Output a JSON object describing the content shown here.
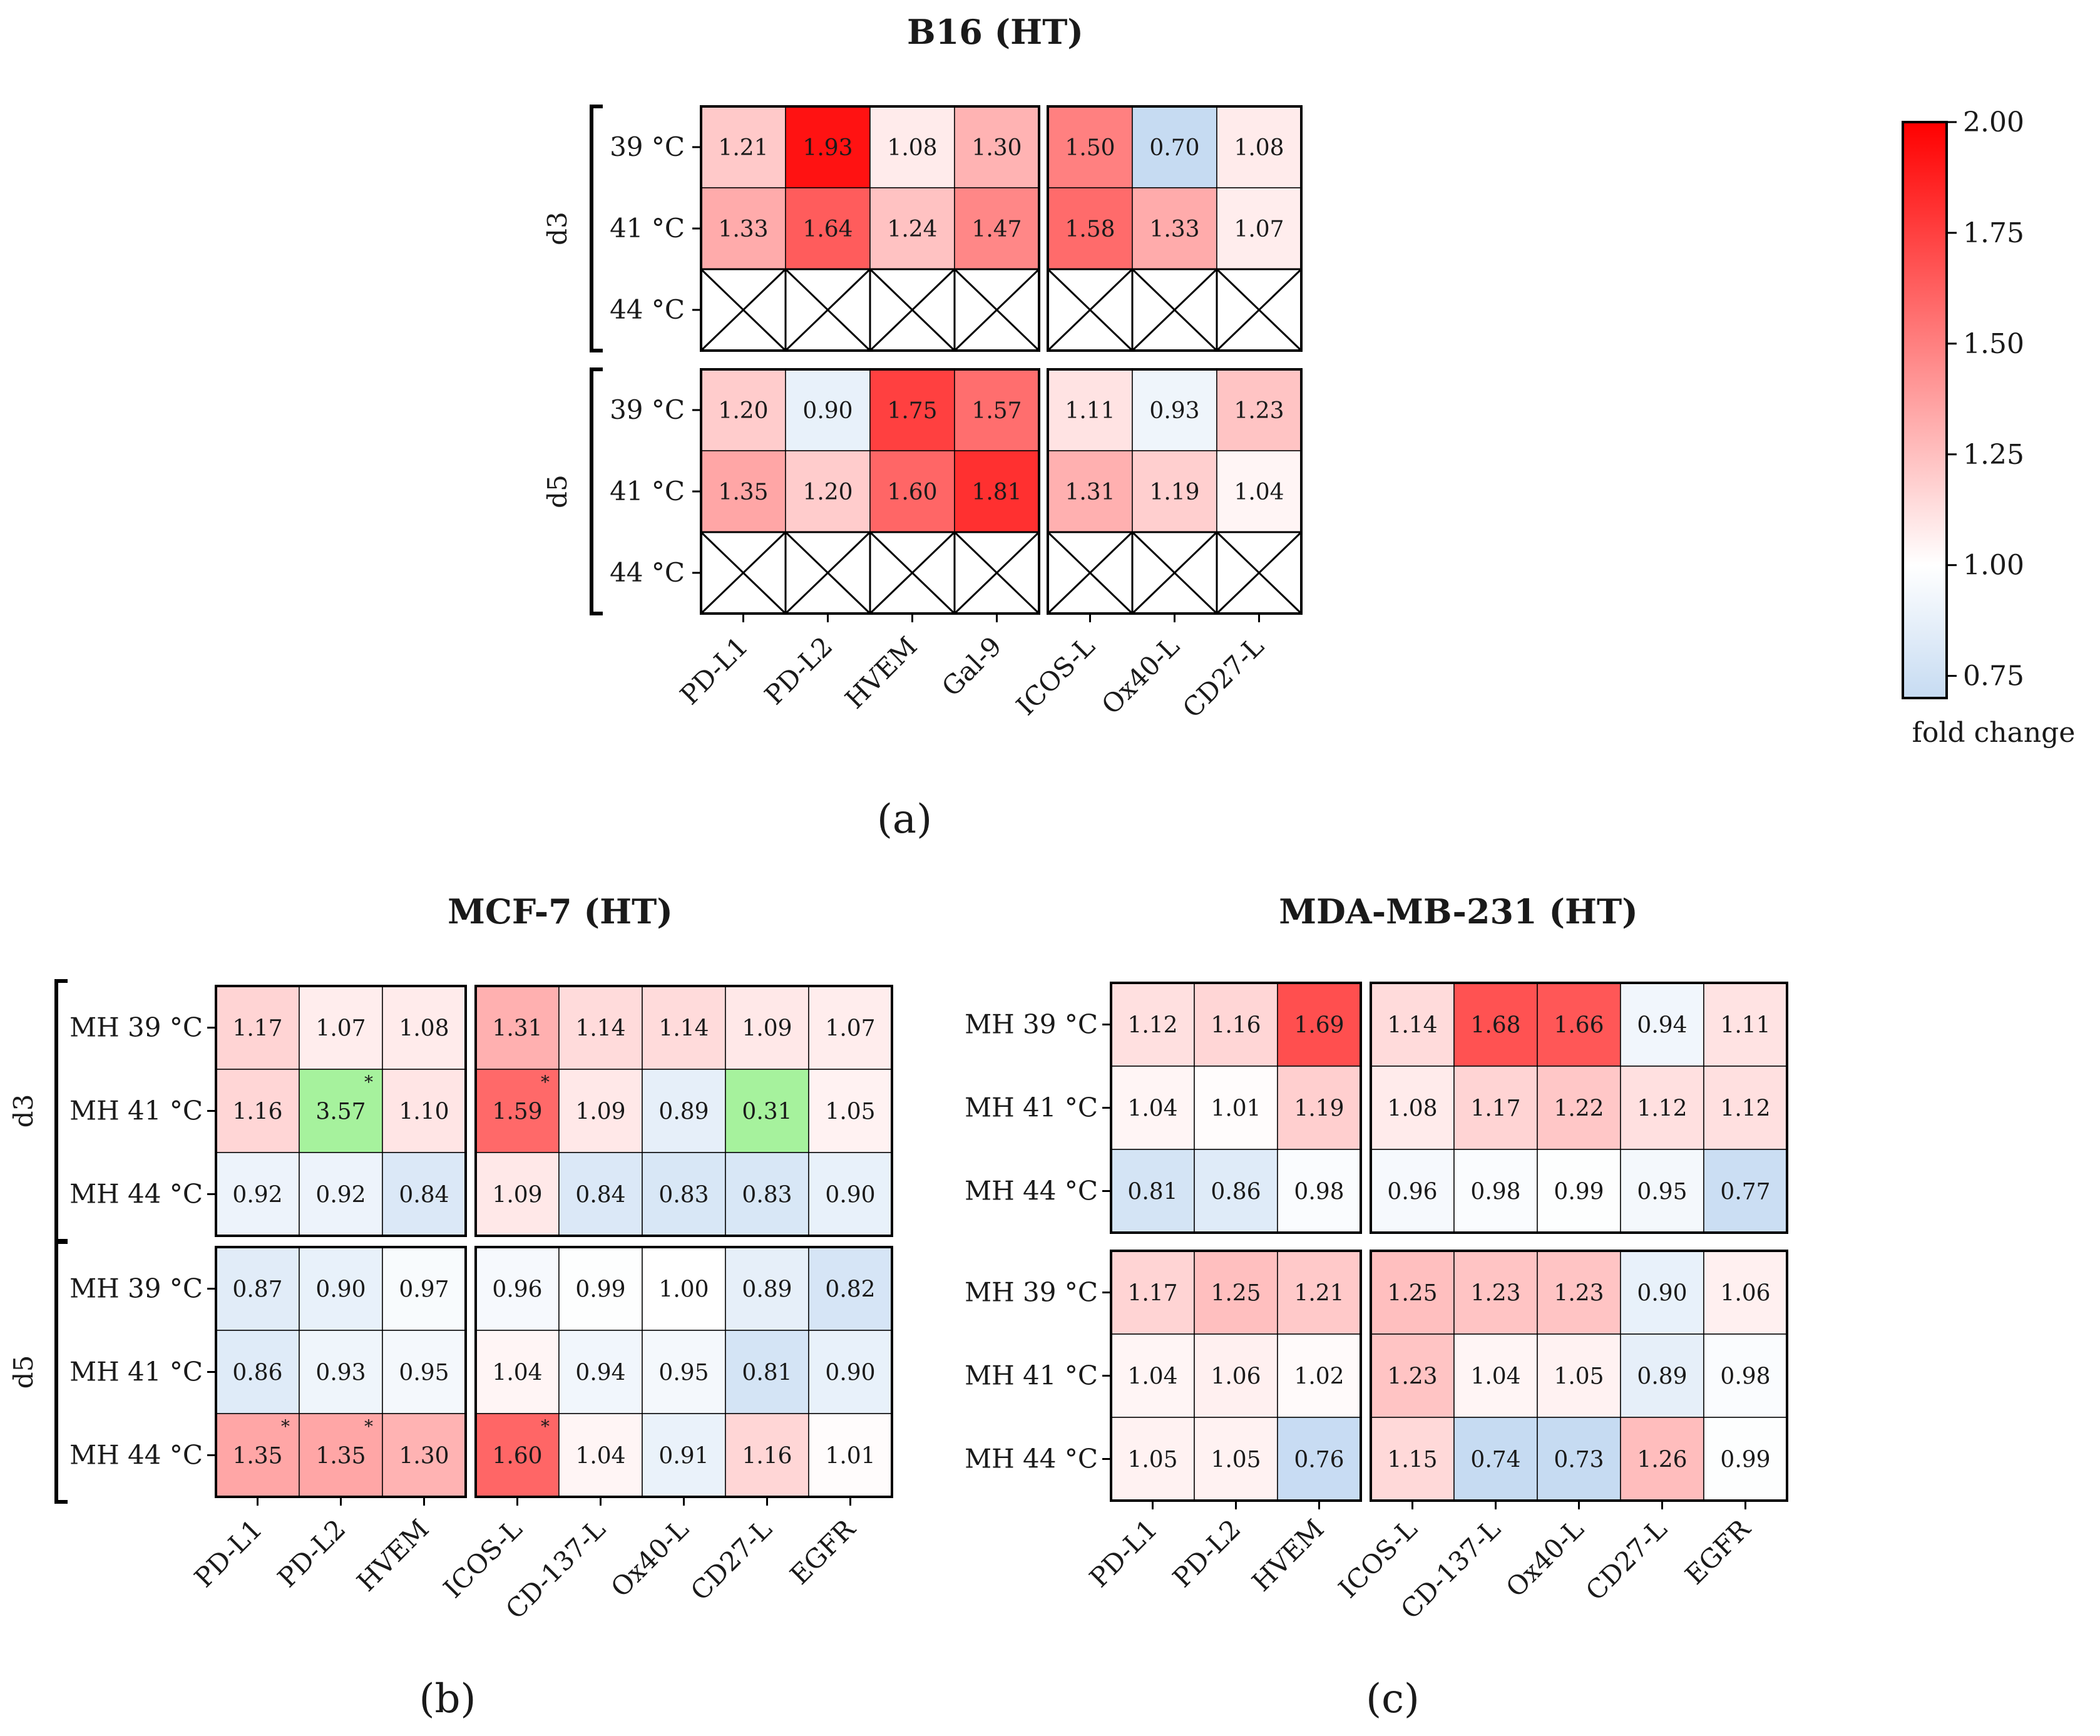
{
  "chart_data": [
    {
      "id": "a",
      "type": "heatmap",
      "title": "B16  (HT)",
      "panel_label": "(a)",
      "groups": [
        "d3",
        "d5"
      ],
      "rows": [
        "39 °C",
        "41 °C",
        "44 °C"
      ],
      "col_blocks": [
        [
          "PD-L1",
          "PD-L2",
          "HVEM",
          "Gal-9"
        ],
        [
          "ICOS-L",
          "Ox40-L",
          "CD27-L"
        ]
      ],
      "values": [
        [
          [
            1.21,
            1.93,
            1.08,
            1.3
          ],
          [
            1.5,
            0.7,
            1.08
          ]
        ],
        [
          [
            1.33,
            1.64,
            1.24,
            1.47
          ],
          [
            1.58,
            1.33,
            1.07
          ]
        ],
        [
          null,
          null
        ],
        [
          [
            1.2,
            0.9,
            1.75,
            1.57
          ],
          [
            1.11,
            0.93,
            1.23
          ]
        ],
        [
          [
            1.35,
            1.2,
            1.6,
            1.81
          ],
          [
            1.31,
            1.19,
            1.04
          ]
        ],
        [
          null,
          null
        ]
      ],
      "value_labels": [
        [
          [
            "1.21",
            "1.93",
            "1.08",
            "1.30"
          ],
          [
            "1.50",
            "0.70",
            "1.08"
          ]
        ],
        [
          [
            "1.33",
            "1.64",
            "1.24",
            "1.47"
          ],
          [
            "1.58",
            "1.33",
            "1.07"
          ]
        ],
        [
          null,
          null
        ],
        [
          [
            "1.20",
            "0.90",
            "1.75",
            "1.57"
          ],
          [
            "1.11",
            "0.93",
            "1.23"
          ]
        ],
        [
          [
            "1.35",
            "1.20",
            "1.60",
            "1.81"
          ],
          [
            "1.31",
            "1.19",
            "1.04"
          ]
        ],
        [
          null,
          null
        ]
      ],
      "stars": []
    },
    {
      "id": "b",
      "type": "heatmap",
      "title": "MCF-7 (HT)",
      "panel_label": "(b)",
      "groups": [
        "d3",
        "d5"
      ],
      "rows": [
        "MH 39 °C",
        "MH 41 °C",
        "MH 44 °C"
      ],
      "col_blocks": [
        [
          "PD-L1",
          "PD-L2",
          "HVEM"
        ],
        [
          "ICOS-L",
          "CD-137-L",
          "Ox40-L",
          "CD27-L",
          "EGFR"
        ]
      ],
      "values": [
        [
          [
            1.17,
            1.07,
            1.08
          ],
          [
            1.31,
            1.14,
            1.14,
            1.09,
            1.07
          ]
        ],
        [
          [
            1.16,
            3.57,
            1.1
          ],
          [
            1.59,
            1.09,
            0.89,
            0.31,
            1.05
          ]
        ],
        [
          [
            0.92,
            0.92,
            0.84
          ],
          [
            1.09,
            0.84,
            0.83,
            0.83,
            0.9
          ]
        ],
        [
          [
            0.87,
            0.9,
            0.97
          ],
          [
            0.96,
            0.99,
            1.0,
            0.89,
            0.82
          ]
        ],
        [
          [
            0.86,
            0.93,
            0.95
          ],
          [
            1.04,
            0.94,
            0.95,
            0.81,
            0.9
          ]
        ],
        [
          [
            1.35,
            1.35,
            1.3
          ],
          [
            1.6,
            1.04,
            0.91,
            1.16,
            1.01
          ]
        ]
      ],
      "value_labels": [
        [
          [
            "1.17",
            "1.07",
            "1.08"
          ],
          [
            "1.31",
            "1.14",
            "1.14",
            "1.09",
            "1.07"
          ]
        ],
        [
          [
            "1.16",
            "3.57",
            "1.10"
          ],
          [
            "1.59",
            "1.09",
            "0.89",
            "0.31",
            "1.05"
          ]
        ],
        [
          [
            "0.92",
            "0.92",
            "0.84"
          ],
          [
            "1.09",
            "0.84",
            "0.83",
            "0.83",
            "0.90"
          ]
        ],
        [
          [
            "0.87",
            "0.90",
            "0.97"
          ],
          [
            "0.96",
            "0.99",
            "1.00",
            "0.89",
            "0.82"
          ]
        ],
        [
          [
            "0.86",
            "0.93",
            "0.95"
          ],
          [
            "1.04",
            "0.94",
            "0.95",
            "0.81",
            "0.90"
          ]
        ],
        [
          [
            "1.35",
            "1.35",
            "1.30"
          ],
          [
            "1.60",
            "1.04",
            "0.91",
            "1.16",
            "1.01"
          ]
        ]
      ],
      "stars": [
        [
          1,
          0,
          1
        ],
        [
          1,
          1,
          0
        ],
        [
          5,
          0,
          0
        ],
        [
          5,
          0,
          1
        ],
        [
          5,
          1,
          0
        ]
      ],
      "star_label": "*"
    },
    {
      "id": "c",
      "type": "heatmap",
      "title": "MDA-MB-231 (HT)",
      "panel_label": "(c)",
      "groups": [],
      "rows": [
        "MH 39 °C",
        "MH 41 °C",
        "MH 44 °C"
      ],
      "col_blocks": [
        [
          "PD-L1",
          "PD-L2",
          "HVEM"
        ],
        [
          "ICOS-L",
          "CD-137-L",
          "Ox40-L",
          "CD27-L",
          "EGFR"
        ]
      ],
      "values": [
        [
          [
            1.12,
            1.16,
            1.69
          ],
          [
            1.14,
            1.68,
            1.66,
            0.94,
            1.11
          ]
        ],
        [
          [
            1.04,
            1.01,
            1.19
          ],
          [
            1.08,
            1.17,
            1.22,
            1.12,
            1.12
          ]
        ],
        [
          [
            0.81,
            0.86,
            0.98
          ],
          [
            0.96,
            0.98,
            0.99,
            0.95,
            0.77
          ]
        ],
        [
          [
            1.17,
            1.25,
            1.21
          ],
          [
            1.25,
            1.23,
            1.23,
            0.9,
            1.06
          ]
        ],
        [
          [
            1.04,
            1.06,
            1.02
          ],
          [
            1.23,
            1.04,
            1.05,
            0.89,
            0.98
          ]
        ],
        [
          [
            1.05,
            1.05,
            0.76
          ],
          [
            1.15,
            0.74,
            0.73,
            1.26,
            0.99
          ]
        ]
      ],
      "value_labels": [
        [
          [
            "1.12",
            "1.16",
            "1.69"
          ],
          [
            "1.14",
            "1.68",
            "1.66",
            "0.94",
            "1.11"
          ]
        ],
        [
          [
            "1.04",
            "1.01",
            "1.19"
          ],
          [
            "1.08",
            "1.17",
            "1.22",
            "1.12",
            "1.12"
          ]
        ],
        [
          [
            "0.81",
            "0.86",
            "0.98"
          ],
          [
            "0.96",
            "0.98",
            "0.99",
            "0.95",
            "0.77"
          ]
        ],
        [
          [
            "1.17",
            "1.25",
            "1.21"
          ],
          [
            "1.25",
            "1.23",
            "1.23",
            "0.90",
            "1.06"
          ]
        ],
        [
          [
            "1.04",
            "1.06",
            "1.02"
          ],
          [
            "1.23",
            "1.04",
            "1.05",
            "0.89",
            "0.98"
          ]
        ],
        [
          [
            "1.05",
            "1.05",
            "0.76"
          ],
          [
            "1.15",
            "0.74",
            "0.73",
            "1.26",
            "0.99"
          ]
        ]
      ],
      "stars": []
    }
  ],
  "colorbar": {
    "ticks": [
      "2.00",
      "1.75",
      "1.50",
      "1.25",
      "1.00",
      "0.75"
    ],
    "range": [
      0.7,
      2.0
    ],
    "label": "fold change",
    "colors": {
      "high": "#ff0000",
      "mid": "#ffffff",
      "low": "#c6dbf2",
      "out_of_range": "#a6f29d"
    }
  }
}
